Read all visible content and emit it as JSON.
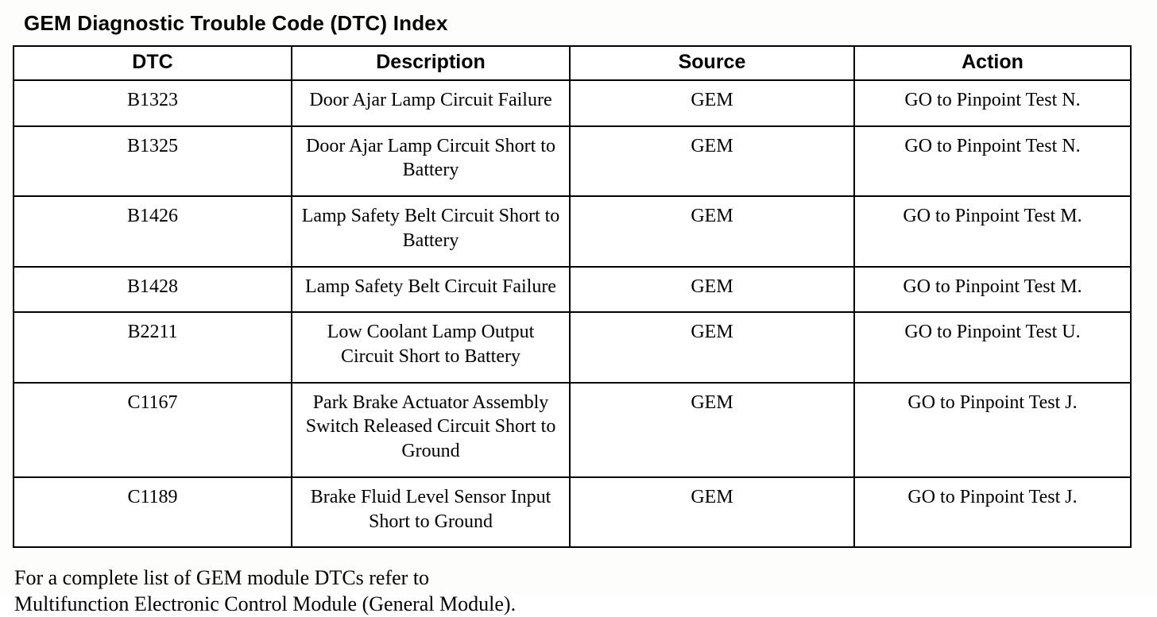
{
  "page": {
    "title": "GEM Diagnostic Trouble Code (DTC) Index",
    "footer": {
      "line1": "For a complete list of GEM module DTCs refer to",
      "line2": "Multifunction Electronic Control Module (General Module)."
    }
  },
  "table": {
    "headers": [
      "DTC",
      "Description",
      "Source",
      "Action"
    ],
    "rows": [
      {
        "dtc": "B1323",
        "description": "Door Ajar Lamp Circuit Failure",
        "source": "GEM",
        "action": "GO to Pinpoint Test N."
      },
      {
        "dtc": "B1325",
        "description": "Door Ajar Lamp Circuit Short to Battery",
        "source": "GEM",
        "action": "GO to Pinpoint Test N."
      },
      {
        "dtc": "B1426",
        "description": "Lamp Safety Belt Circuit Short to Battery",
        "source": "GEM",
        "action": "GO to Pinpoint Test M."
      },
      {
        "dtc": "B1428",
        "description": "Lamp Safety Belt Circuit Failure",
        "source": "GEM",
        "action": "GO to Pinpoint Test M."
      },
      {
        "dtc": "B2211",
        "description": "Low Coolant Lamp Output Circuit Short to Battery",
        "source": "GEM",
        "action": "GO to Pinpoint Test U."
      },
      {
        "dtc": "C1167",
        "description": "Park Brake Actuator Assembly Switch Released Circuit Short to Ground",
        "source": "GEM",
        "action": "GO to Pinpoint Test J."
      },
      {
        "dtc": "C1189",
        "description": "Brake Fluid Level Sensor Input Short to Ground",
        "source": "GEM",
        "action": "GO to Pinpoint Test J."
      }
    ]
  }
}
